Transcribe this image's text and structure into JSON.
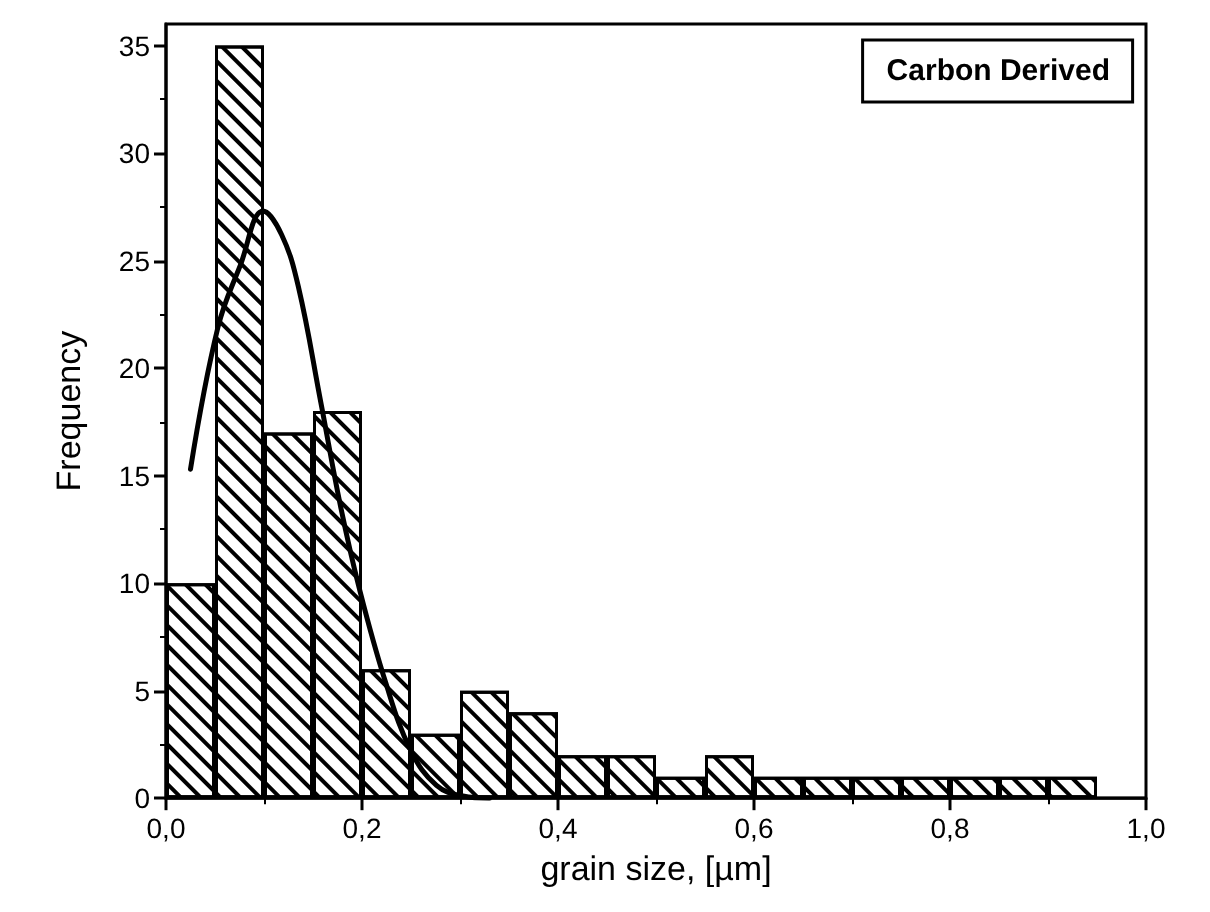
{
  "chart_data": {
    "type": "histogram",
    "title": "Carbon Derived",
    "xlabel": "grain size, [µm]",
    "ylabel": "Frequency",
    "bins": [
      0,
      0.05,
      0.1,
      0.15,
      0.2,
      0.25,
      0.3,
      0.35,
      0.4,
      0.45,
      0.5,
      0.55,
      0.6,
      0.65,
      0.7,
      0.75,
      0.8,
      0.85,
      0.9,
      0.95
    ],
    "values": [
      10,
      35,
      17,
      18,
      6,
      3,
      5,
      4,
      2,
      2,
      1,
      2,
      1,
      1,
      1,
      1,
      1,
      1,
      1
    ],
    "color": "#000000",
    "series": [
      {
        "type": "line",
        "color": "#000000",
        "x": [
          0.025,
          0.053,
          0.076,
          0.099,
          0.118,
          0.135,
          0.158,
          0.178,
          0.197,
          0.224,
          0.25,
          0.276,
          0.303,
          0.33
        ],
        "values": [
          15.3,
          21.9,
          24.8,
          27.3,
          26.2,
          23.8,
          18.4,
          13.6,
          9.8,
          5.4,
          2.2,
          0.6,
          0.1,
          0
        ]
      }
    ],
    "xlim": [
      0,
      1
    ],
    "xticks": [
      {
        "value": 0,
        "label": "0,0"
      },
      {
        "value": 0.2,
        "label": "0,2"
      },
      {
        "value": 0.4,
        "label": "0,4"
      },
      {
        "value": 0.6,
        "label": "0,6"
      },
      {
        "value": 0.8,
        "label": "0,8"
      },
      {
        "value": 1,
        "label": "1,0"
      }
    ],
    "ylim": [
      0,
      36
    ],
    "yticks": [
      0,
      5,
      10,
      15,
      20,
      25,
      30,
      35
    ],
    "grid": false,
    "marker": "none",
    "line_style": "solid"
  }
}
